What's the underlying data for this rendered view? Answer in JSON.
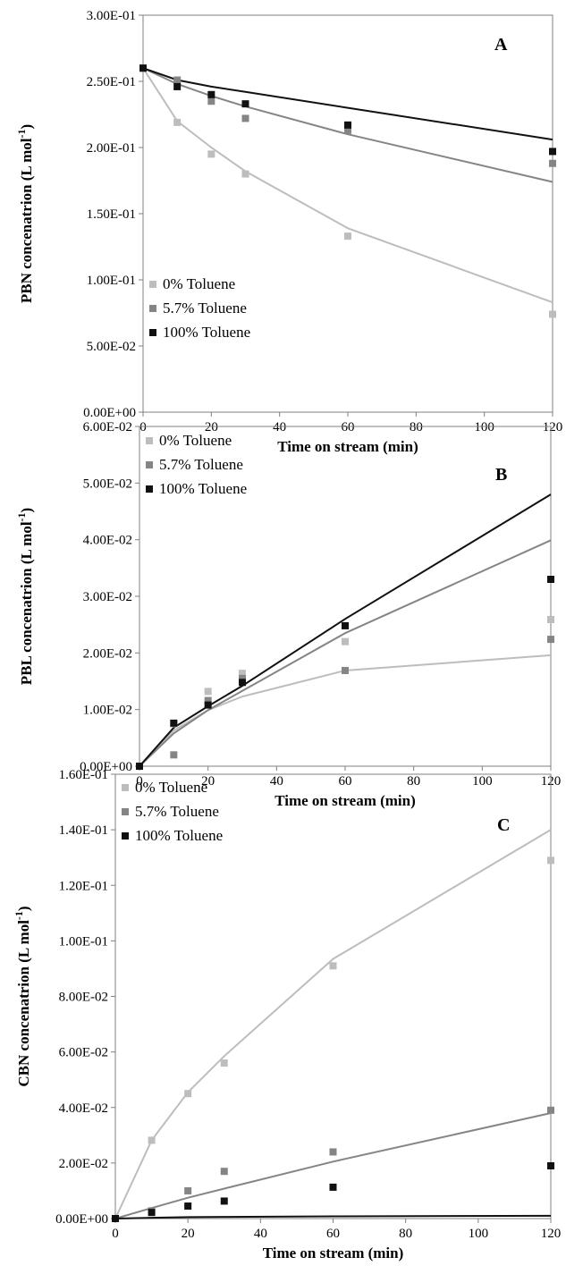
{
  "chart_data": [
    {
      "type": "line",
      "panel_label": "A",
      "xlabel": "Time on stream (min)",
      "ylabel_main": "PBN concenatrion (L mol",
      "ylabel_sup": "-1",
      "ylabel_close": ")",
      "xlim": [
        0,
        120
      ],
      "ylim": [
        0,
        0.3
      ],
      "xticks": [
        0,
        20,
        40,
        60,
        80,
        100,
        120
      ],
      "xtick_labels": [
        "0",
        "20",
        "40",
        "60",
        "80",
        "100",
        "120"
      ],
      "yticks": [
        0,
        0.05,
        0.1,
        0.15,
        0.2,
        0.25,
        0.3
      ],
      "ytick_labels": [
        "0.00E+00",
        "5.00E-02",
        "1.00E-01",
        "1.50E-01",
        "2.00E-01",
        "2.50E-01",
        "3.00E-01"
      ],
      "legend_position": "bottom-left",
      "series": [
        {
          "name": "0% Toluene",
          "color": "#bdbdbd",
          "points": [
            [
              0,
              0.26
            ],
            [
              10,
              0.219
            ],
            [
              20,
              0.195
            ],
            [
              30,
              0.18
            ],
            [
              60,
              0.133
            ],
            [
              120,
              0.074
            ]
          ],
          "fit": [
            [
              0,
              0.26
            ],
            [
              10,
              0.22
            ],
            [
              20,
              0.2
            ],
            [
              30,
              0.182
            ],
            [
              60,
              0.139
            ],
            [
              120,
              0.083
            ]
          ]
        },
        {
          "name": "5.7% Toluene",
          "color": "#858585",
          "points": [
            [
              0,
              0.26
            ],
            [
              10,
              0.251
            ],
            [
              20,
              0.235
            ],
            [
              30,
              0.222
            ],
            [
              60,
              0.213
            ],
            [
              120,
              0.188
            ]
          ],
          "fit": [
            [
              0,
              0.26
            ],
            [
              10,
              0.248
            ],
            [
              20,
              0.239
            ],
            [
              30,
              0.231
            ],
            [
              60,
              0.21
            ],
            [
              120,
              0.174
            ]
          ]
        },
        {
          "name": "100% Toluene",
          "color": "#111111",
          "points": [
            [
              0,
              0.26
            ],
            [
              10,
              0.246
            ],
            [
              20,
              0.24
            ],
            [
              30,
              0.233
            ],
            [
              60,
              0.217
            ],
            [
              120,
              0.197
            ]
          ],
          "fit": [
            [
              0,
              0.26
            ],
            [
              10,
              0.251
            ],
            [
              20,
              0.246
            ],
            [
              30,
              0.242
            ],
            [
              60,
              0.23
            ],
            [
              120,
              0.206
            ]
          ]
        }
      ]
    },
    {
      "type": "line",
      "panel_label": "B",
      "xlabel": "Time on stream (min)",
      "ylabel_main": "PBL concenatrion (L mol",
      "ylabel_sup": "-1",
      "ylabel_close": ")",
      "xlim": [
        0,
        120
      ],
      "ylim": [
        0,
        0.06
      ],
      "xticks": [
        0,
        20,
        40,
        60,
        80,
        100,
        120
      ],
      "xtick_labels": [
        "0",
        "20",
        "40",
        "60",
        "80",
        "100",
        "120"
      ],
      "yticks": [
        0,
        0.01,
        0.02,
        0.03,
        0.04,
        0.05,
        0.06
      ],
      "ytick_labels": [
        "0.00E+00",
        "1.00E-02",
        "2.00E-02",
        "3.00E-02",
        "4.00E-02",
        "5.00E-02",
        "6.00E-02"
      ],
      "legend_position": "top-left",
      "series": [
        {
          "name": "0% Toluene",
          "color": "#bdbdbd",
          "points": [
            [
              0,
              0
            ],
            [
              10,
              0.0075
            ],
            [
              20,
              0.0132
            ],
            [
              30,
              0.0164
            ],
            [
              60,
              0.022
            ],
            [
              120,
              0.0259
            ]
          ],
          "fit": [
            [
              0,
              0
            ],
            [
              10,
              0.0063
            ],
            [
              20,
              0.0099
            ],
            [
              30,
              0.0123
            ],
            [
              60,
              0.0169
            ],
            [
              120,
              0.0196
            ]
          ]
        },
        {
          "name": "5.7% Toluene",
          "color": "#858585",
          "points": [
            [
              0,
              0
            ],
            [
              10,
              0.002
            ],
            [
              20,
              0.0116
            ],
            [
              30,
              0.0155
            ],
            [
              60,
              0.0169
            ],
            [
              120,
              0.0224
            ]
          ],
          "fit": [
            [
              0,
              0
            ],
            [
              10,
              0.0058
            ],
            [
              20,
              0.0099
            ],
            [
              30,
              0.0133
            ],
            [
              60,
              0.0235
            ],
            [
              120,
              0.0399
            ]
          ]
        },
        {
          "name": "100% Toluene",
          "color": "#111111",
          "points": [
            [
              0,
              0
            ],
            [
              10,
              0.0076
            ],
            [
              20,
              0.0108
            ],
            [
              30,
              0.0148
            ],
            [
              60,
              0.0248
            ],
            [
              120,
              0.033
            ]
          ],
          "fit": [
            [
              0,
              0
            ],
            [
              10,
              0.0068
            ],
            [
              20,
              0.0106
            ],
            [
              30,
              0.0142
            ],
            [
              60,
              0.026
            ],
            [
              120,
              0.048
            ]
          ]
        }
      ]
    },
    {
      "type": "line",
      "panel_label": "C",
      "xlabel": "Time on stream (min)",
      "ylabel_main": "CBN concenatrion (L mol",
      "ylabel_sup": "-1",
      "ylabel_close": ")",
      "xlim": [
        0,
        120
      ],
      "ylim": [
        0,
        0.16
      ],
      "xticks": [
        0,
        20,
        40,
        60,
        80,
        100,
        120
      ],
      "xtick_labels": [
        "0",
        "20",
        "40",
        "60",
        "80",
        "100",
        "120"
      ],
      "yticks": [
        0,
        0.02,
        0.04,
        0.06,
        0.08,
        0.1,
        0.12,
        0.14,
        0.16
      ],
      "ytick_labels": [
        "0.00E+00",
        "2.00E-02",
        "4.00E-02",
        "6.00E-02",
        "8.00E-02",
        "1.00E-01",
        "1.20E-01",
        "1.40E-01",
        "1.60E-01"
      ],
      "legend_position": "top-left",
      "series": [
        {
          "name": "0% Toluene",
          "color": "#bdbdbd",
          "points": [
            [
              0,
              0
            ],
            [
              10,
              0.0282
            ],
            [
              20,
              0.045
            ],
            [
              30,
              0.056
            ],
            [
              60,
              0.091
            ],
            [
              120,
              0.129
            ]
          ],
          "fit": [
            [
              0,
              0
            ],
            [
              10,
              0.0282
            ],
            [
              20,
              0.0455
            ],
            [
              30,
              0.0585
            ],
            [
              60,
              0.0935
            ],
            [
              120,
              0.14
            ]
          ]
        },
        {
          "name": "5.7% Toluene",
          "color": "#858585",
          "points": [
            [
              0,
              0
            ],
            [
              10,
              0.0028
            ],
            [
              20,
              0.01
            ],
            [
              30,
              0.017
            ],
            [
              60,
              0.024
            ],
            [
              120,
              0.039
            ]
          ],
          "fit": [
            [
              0,
              0
            ],
            [
              10,
              0.0038
            ],
            [
              20,
              0.0075
            ],
            [
              30,
              0.0108
            ],
            [
              60,
              0.0205
            ],
            [
              120,
              0.038
            ]
          ]
        },
        {
          "name": "100% Toluene",
          "color": "#111111",
          "points": [
            [
              0,
              0
            ],
            [
              10,
              0.0022
            ],
            [
              20,
              0.0045
            ],
            [
              30,
              0.0063
            ],
            [
              60,
              0.0113
            ],
            [
              120,
              0.019
            ]
          ],
          "fit": [
            [
              0,
              0
            ],
            [
              10,
              0.0003
            ],
            [
              20,
              0.0005
            ],
            [
              30,
              0.0006
            ],
            [
              60,
              0.0008
            ],
            [
              120,
              0.001
            ]
          ]
        }
      ]
    }
  ]
}
